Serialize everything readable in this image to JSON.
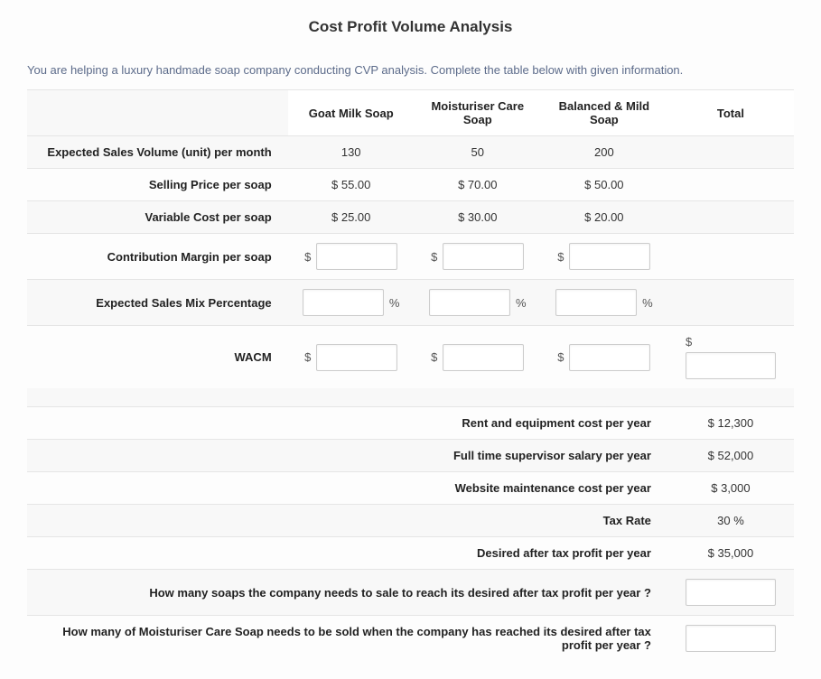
{
  "title": "Cost Profit Volume Analysis",
  "instructions": "You are helping a luxury handmade soap company conducting CVP analysis. Complete the table below with given information.",
  "columns": {
    "c1": "Goat Milk Soap",
    "c2": "Moisturiser Care Soap",
    "c3": "Balanced & Mild Soap",
    "total": "Total"
  },
  "rows": {
    "vol": {
      "label": "Expected Sales Volume (unit) per month",
      "c1": "130",
      "c2": "50",
      "c3": "200"
    },
    "price": {
      "label": "Selling Price per soap",
      "c1": "$ 55.00",
      "c2": "$ 70.00",
      "c3": "$ 50.00"
    },
    "vc": {
      "label": "Variable Cost per soap",
      "c1": "$ 25.00",
      "c2": "$ 30.00",
      "c3": "$ 20.00"
    },
    "cm": {
      "label": "Contribution Margin per soap"
    },
    "mix": {
      "label": "Expected Sales Mix Percentage"
    },
    "wacm": {
      "label": "WACM"
    }
  },
  "affix": {
    "dollar": "$",
    "percent": "%"
  },
  "fixed": {
    "rent": {
      "label": "Rent and equipment cost per year",
      "value": "$ 12,300"
    },
    "salary": {
      "label": "Full time supervisor salary per year",
      "value": "$ 52,000"
    },
    "website": {
      "label": "Website maintenance cost per year",
      "value": "$ 3,000"
    },
    "tax": {
      "label": "Tax Rate",
      "value": "30 %"
    },
    "profit": {
      "label": "Desired after tax profit per year",
      "value": "$ 35,000"
    }
  },
  "questions": {
    "q1": "How many soaps the company needs to sale to reach its desired after tax profit per year ?",
    "q2": "How many of Moisturiser Care Soap needs to be sold when the company has reached its desired after tax profit per year ?"
  }
}
